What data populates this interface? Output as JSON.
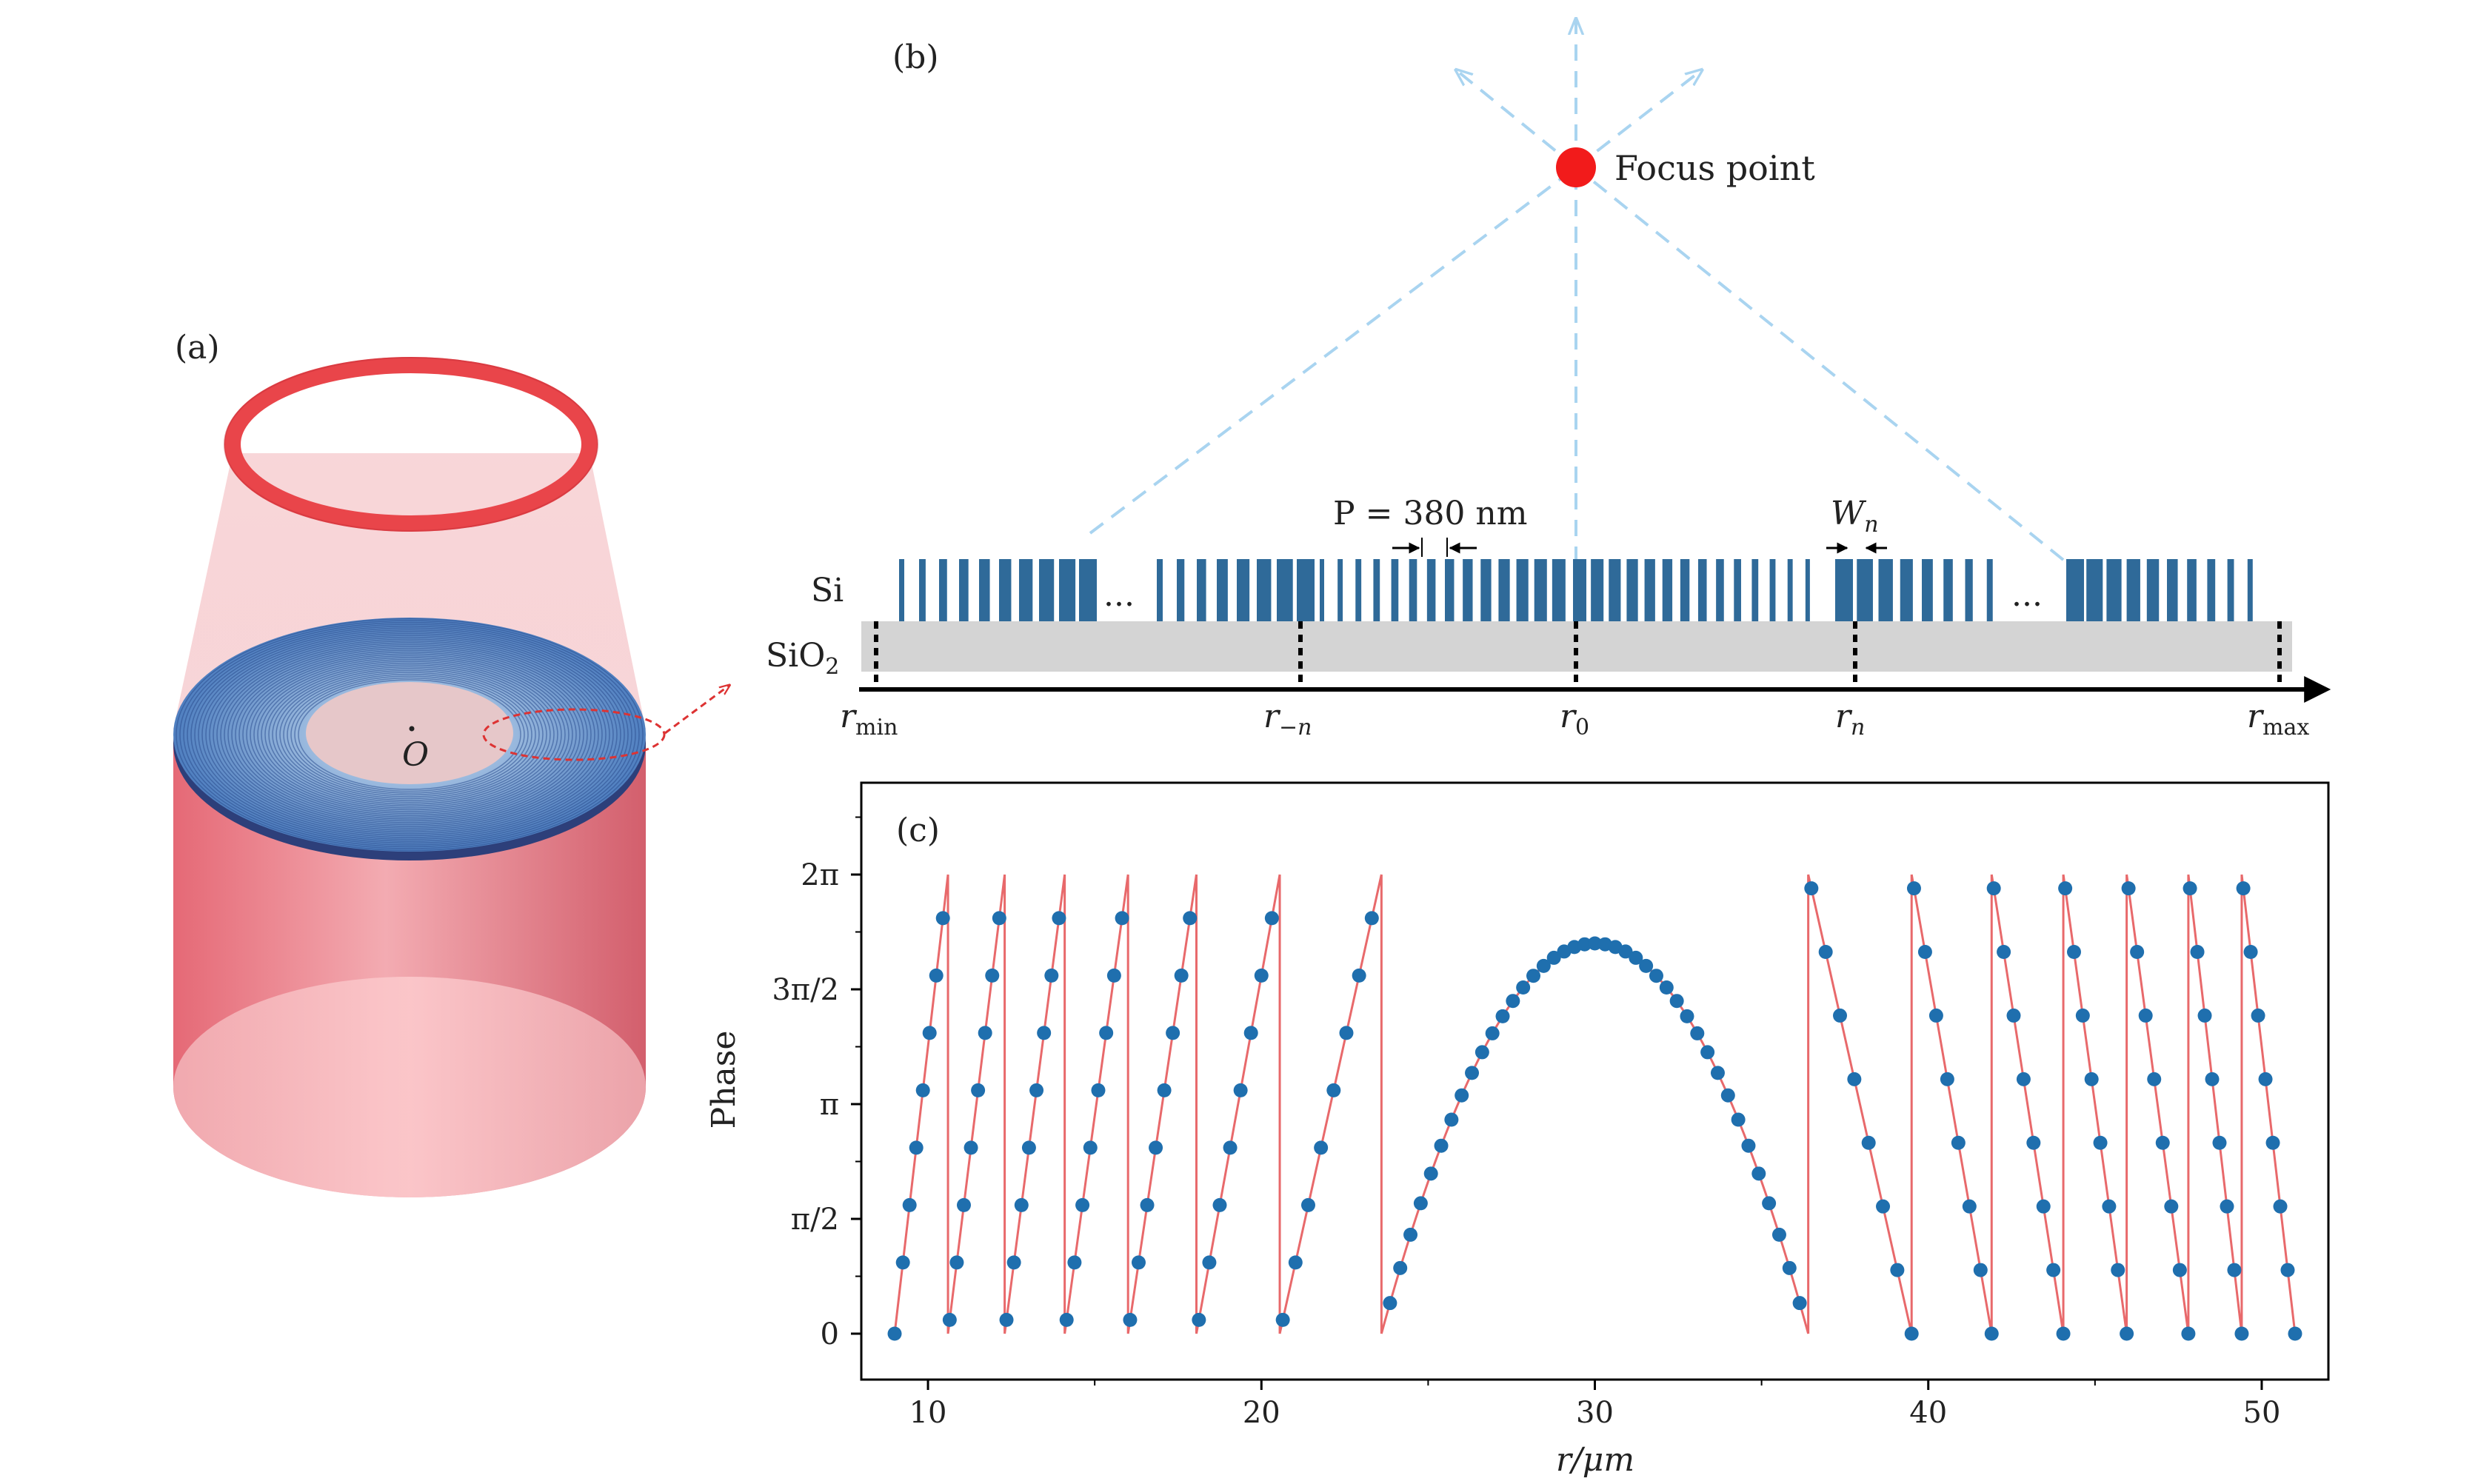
{
  "panel_a": {
    "label": "(a)",
    "center_label": "O",
    "colors": {
      "cylinder": "#e0707c",
      "ring": "#e9454a",
      "grating": "#3f6fb0"
    }
  },
  "panel_b": {
    "label": "(b)",
    "focus_label": "Focus point",
    "layer_si": "Si",
    "layer_sio2_base": "SiO",
    "layer_sio2_sub": "2",
    "period_label": "P = 380 nm",
    "width_label_base": "W",
    "width_label_sub": "n",
    "ellipsis": "...",
    "positions": [
      {
        "base": "r",
        "sub": "min"
      },
      {
        "base": "r",
        "sub": "−n"
      },
      {
        "base": "r",
        "sub": "0"
      },
      {
        "base": "r",
        "sub": "n"
      },
      {
        "base": "r",
        "sub": "max"
      }
    ],
    "colors": {
      "bars": "#2f6a99",
      "substrate": "#d4d4d4",
      "rays": "#a9d4f0",
      "focus": "#f21b1b"
    }
  },
  "panel_c": {
    "label": "(c)",
    "xlabel": "r/μm",
    "ylabel": "Phase"
  },
  "chart_data": {
    "type": "scatter",
    "xlim": [
      8,
      52
    ],
    "ylim": [
      -0.2,
      2.4
    ],
    "x_ticks": [
      10,
      20,
      30,
      40,
      50
    ],
    "x_tick_labels": [
      "10",
      "20",
      "30",
      "40",
      "50"
    ],
    "y_ticks": [
      0,
      0.5,
      1,
      1.5,
      2
    ],
    "y_tick_labels": [
      "0",
      "π/2",
      "π",
      "3π/2",
      "2π"
    ],
    "y_unit": "multiples of π",
    "center": 30,
    "line_color": "#e8696b",
    "marker_color": "#1f6fae",
    "jumps_left": [
      9.0,
      10.6,
      12.3,
      14.1,
      16.0,
      18.05,
      20.55,
      23.6
    ],
    "jumps_right": [
      36.4,
      39.5,
      41.9,
      44.05,
      45.95,
      47.8,
      49.4,
      51.0
    ],
    "center_peak": 1.7,
    "points_per_segment": 8,
    "points_center": 41
  }
}
